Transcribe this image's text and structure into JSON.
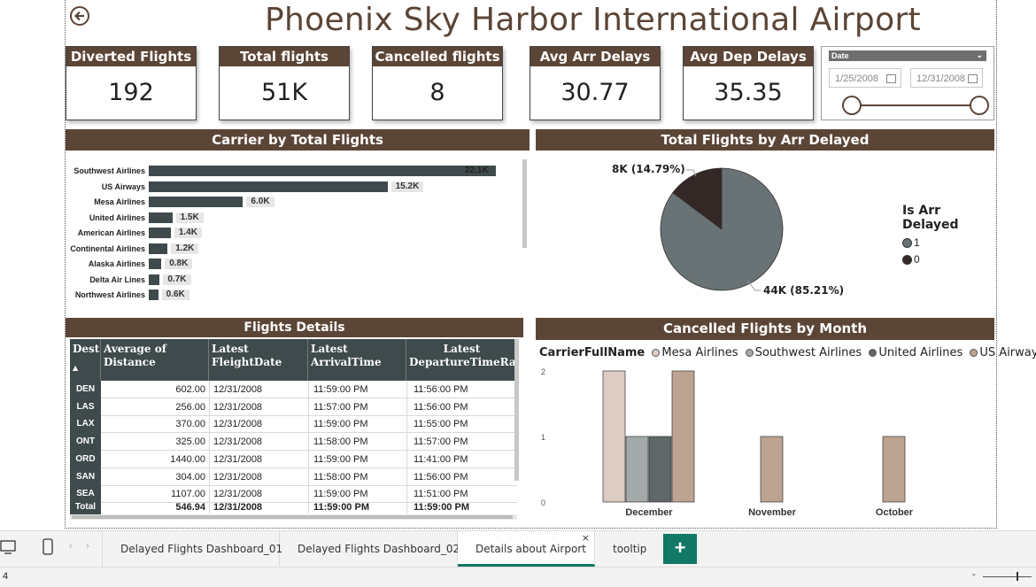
{
  "title": "Phoenix Sky Harbor International Airport",
  "kpis": [
    {
      "label": "Diverted Flights",
      "value": "192"
    },
    {
      "label": "Total flights",
      "value": "51K"
    },
    {
      "label": "Cancelled flights",
      "value": "8"
    },
    {
      "label": "Avg Arr Delays",
      "value": "30.77"
    },
    {
      "label": "Avg Dep Delays",
      "value": "35.35"
    }
  ],
  "slicer": {
    "label": "Date",
    "start": "1/25/2008",
    "end": "12/31/2008"
  },
  "carrier_chart": {
    "title": "Carrier by Total Flights",
    "carriers": [
      "Southwest Airlines",
      "US Airways",
      "Mesa Airlines",
      "United Airlines",
      "American Airlines",
      "Continental Airlines",
      "Alaska Airlines",
      "Delta Air Lines",
      "Northwest Airlines"
    ],
    "labels": [
      "22.1K",
      "15.2K",
      "6.0K",
      "1.5K",
      "1.4K",
      "1.2K",
      "0.8K",
      "0.7K",
      "0.6K"
    ],
    "values": [
      22100,
      15200,
      6000,
      1500,
      1400,
      1200,
      800,
      700,
      600
    ],
    "bar_color": "#3f4a4c"
  },
  "pie_chart": {
    "title": "Total Flights by Arr Delayed",
    "legend_title": "Is Arr Delayed",
    "slices": [
      {
        "name": "1",
        "value": 44000,
        "label": "44K (85.21%)",
        "percent": 85.21,
        "color": "#697274"
      },
      {
        "name": "0",
        "value": 8000,
        "label": "8K (14.79%)",
        "percent": 14.79,
        "color": "#332826"
      }
    ]
  },
  "table": {
    "title": "Flights Details",
    "columns": [
      "Dest",
      "Average of Distance",
      "Latest FleightDate",
      "Latest ArrivalTime",
      "Latest DepartureTimeRaw"
    ],
    "rows": [
      [
        "DEN",
        "602.00",
        "12/31/2008",
        "11:59:00 PM",
        "11:56:00 PM"
      ],
      [
        "LAS",
        "256.00",
        "12/31/2008",
        "11:57:00 PM",
        "11:56:00 PM"
      ],
      [
        "LAX",
        "370.00",
        "12/31/2008",
        "11:59:00 PM",
        "11:55:00 PM"
      ],
      [
        "ONT",
        "325.00",
        "12/31/2008",
        "11:58:00 PM",
        "11:57:00 PM"
      ],
      [
        "ORD",
        "1440.00",
        "12/31/2008",
        "11:59:00 PM",
        "11:41:00 PM"
      ],
      [
        "SAN",
        "304.00",
        "12/31/2008",
        "11:58:00 PM",
        "11:56:00 PM"
      ],
      [
        "SEA",
        "1107.00",
        "12/31/2008",
        "11:59:00 PM",
        "11:51:00 PM"
      ]
    ],
    "total": [
      "Total",
      "546.94",
      "12/31/2008",
      "11:59:00 PM",
      "11:59:00 PM"
    ]
  },
  "chart_data": {
    "type": "bar",
    "title": "Cancelled Flights by Month",
    "legend_title": "CarrierFullName",
    "categories": [
      "December",
      "November",
      "October"
    ],
    "series": [
      {
        "name": "Mesa Airlines",
        "color": "#dcccc4",
        "values": [
          2,
          0,
          0
        ]
      },
      {
        "name": "Southwest Airlines",
        "color": "#a3a9a9",
        "values": [
          1,
          0,
          0
        ]
      },
      {
        "name": "United Airlines",
        "color": "#5f6768",
        "values": [
          1,
          0,
          0
        ]
      },
      {
        "name": "US Airways",
        "color": "#bda392",
        "values": [
          2,
          1,
          1
        ]
      }
    ],
    "ylim": [
      0,
      2
    ],
    "yticks": [
      "0",
      "1",
      "2"
    ]
  },
  "tabs": [
    {
      "label": "Delayed Flights Dashboard_01"
    },
    {
      "label": "Delayed Flights Dashboard_02"
    },
    {
      "label": "Details about Airport",
      "active": true
    },
    {
      "label": "tooltip"
    }
  ],
  "status": {
    "page": "4"
  },
  "colors": {
    "brand": "#5b4536",
    "accent": "#117865"
  }
}
